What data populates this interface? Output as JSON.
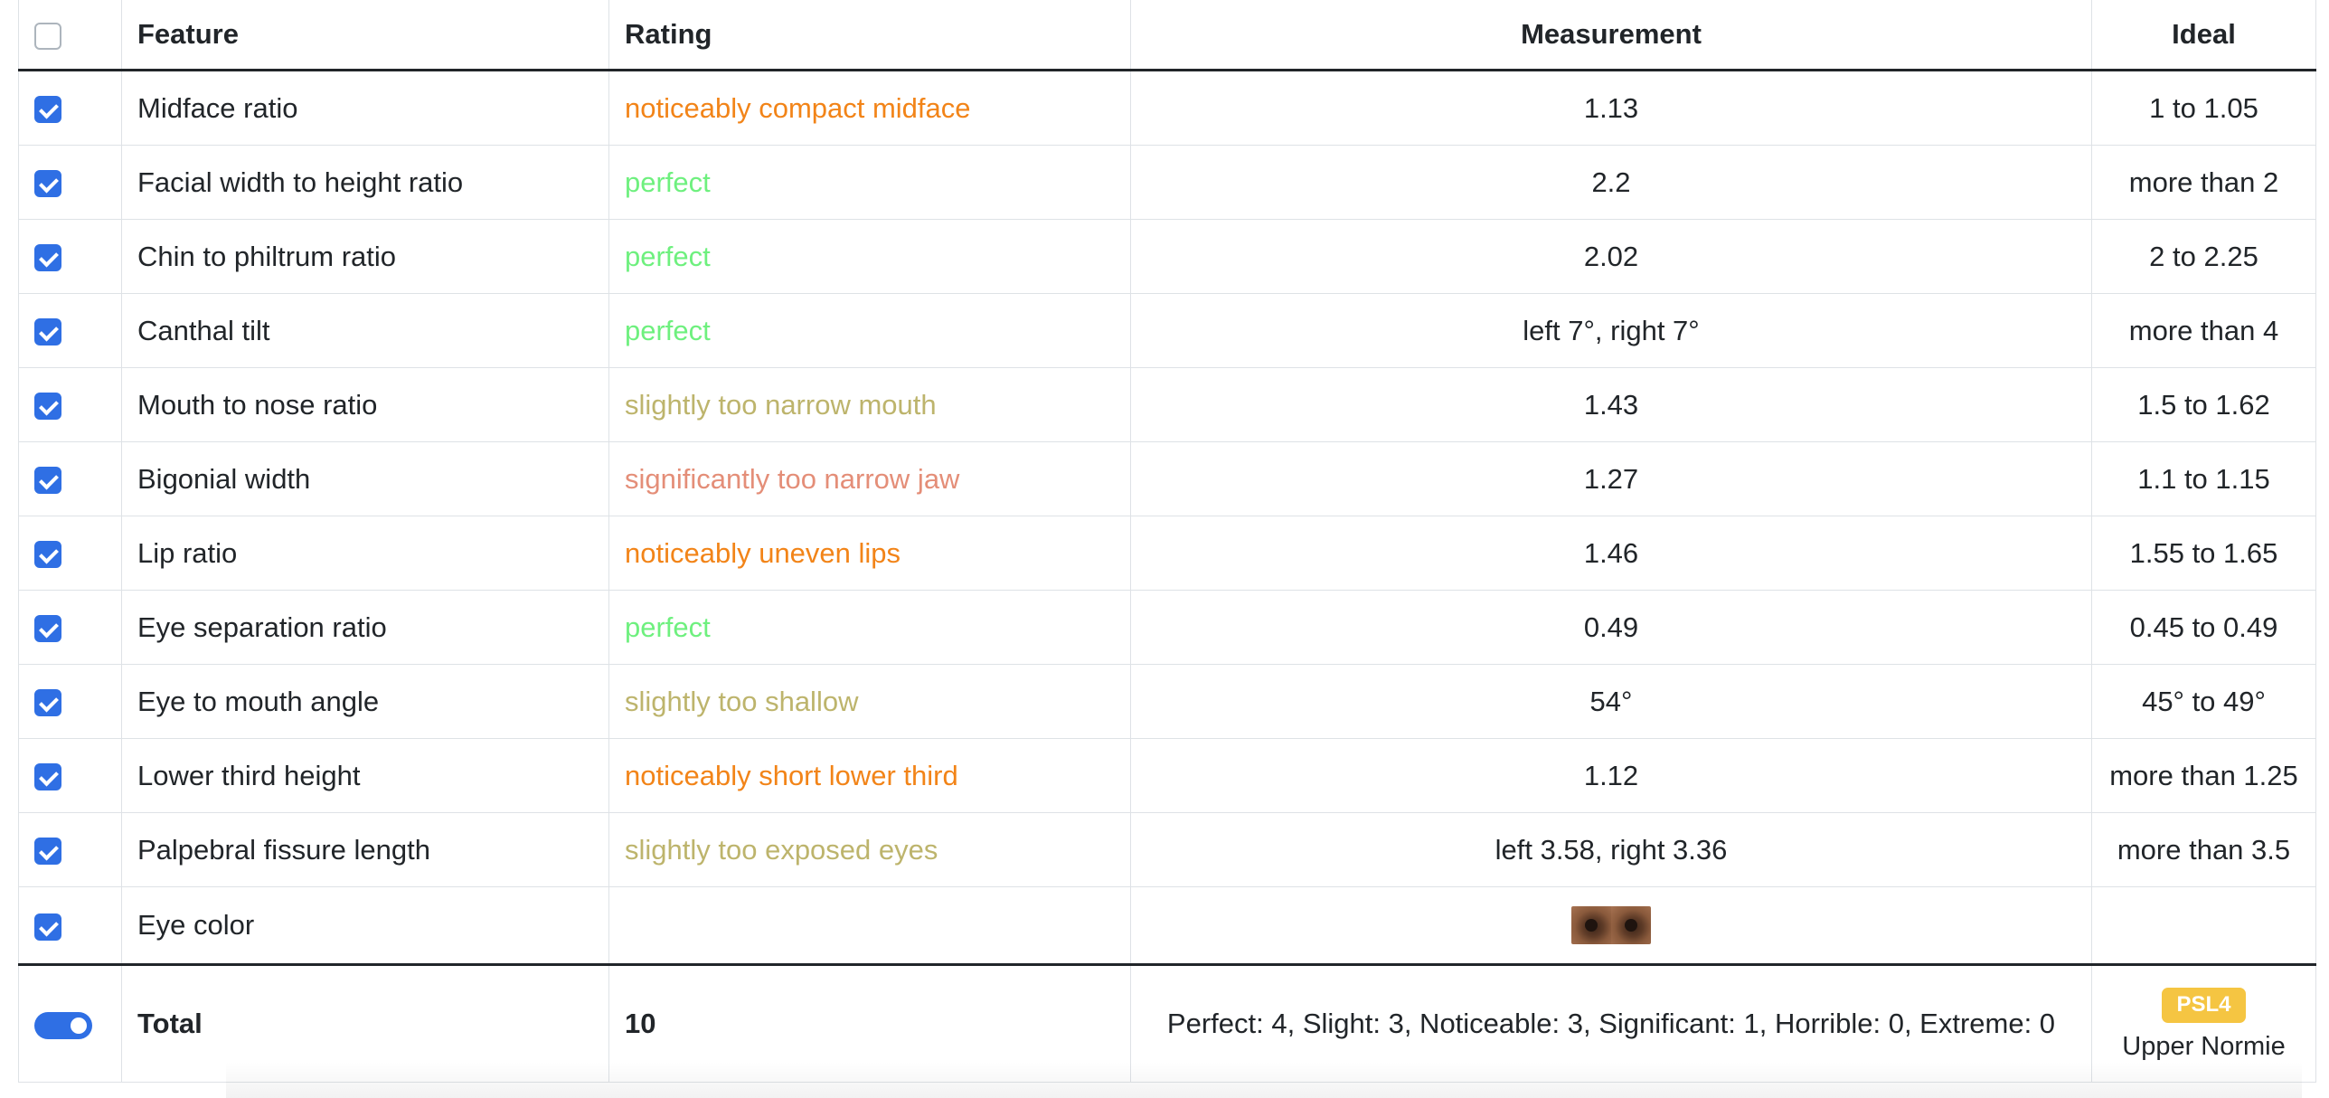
{
  "headers": {
    "feature": "Feature",
    "rating": "Rating",
    "measurement": "Measurement",
    "ideal": "Ideal"
  },
  "rows": [
    {
      "feature": "Midface ratio",
      "rating": "noticeably compact midface",
      "rating_color": "#f28418",
      "measurement": "1.13",
      "ideal": "1 to 1.05"
    },
    {
      "feature": "Facial width to height ratio",
      "rating": "perfect",
      "rating_color": "#6ef07e",
      "measurement": "2.2",
      "ideal": "more than 2"
    },
    {
      "feature": "Chin to philtrum ratio",
      "rating": "perfect",
      "rating_color": "#6ef07e",
      "measurement": "2.02",
      "ideal": "2 to 2.25"
    },
    {
      "feature": "Canthal tilt",
      "rating": "perfect",
      "rating_color": "#6ef07e",
      "measurement": "left 7°, right 7°",
      "ideal": "more than 4"
    },
    {
      "feature": "Mouth to nose ratio",
      "rating": "slightly too narrow mouth",
      "rating_color": "#bdb46c",
      "measurement": "1.43",
      "ideal": "1.5 to 1.62"
    },
    {
      "feature": "Bigonial width",
      "rating": "significantly too narrow jaw",
      "rating_color": "#e48e78",
      "measurement": "1.27",
      "ideal": "1.1 to 1.15"
    },
    {
      "feature": "Lip ratio",
      "rating": "noticeably uneven lips",
      "rating_color": "#f28418",
      "measurement": "1.46",
      "ideal": "1.55 to 1.65"
    },
    {
      "feature": "Eye separation ratio",
      "rating": "perfect",
      "rating_color": "#6ef07e",
      "measurement": "0.49",
      "ideal": "0.45 to 0.49"
    },
    {
      "feature": "Eye to mouth angle",
      "rating": "slightly too shallow",
      "rating_color": "#bdb46c",
      "measurement": "54°",
      "ideal": "45° to 49°"
    },
    {
      "feature": "Lower third height",
      "rating": "noticeably short lower third",
      "rating_color": "#f28418",
      "measurement": "1.12",
      "ideal": "more than 1.25"
    },
    {
      "feature": "Palpebral fissure length",
      "rating": "slightly too exposed eyes",
      "rating_color": "#bdb46c",
      "measurement": "left 3.58, right 3.36",
      "ideal": "more than 3.5"
    },
    {
      "feature": "Eye color",
      "rating": "",
      "rating_color": "#212529",
      "measurement": "",
      "ideal": "",
      "measurement_icon": "eye-color-swatch"
    }
  ],
  "footer": {
    "label": "Total",
    "total_value": "10",
    "summary": "Perfect: 4, Slight: 3, Noticeable: 3, Significant: 1, Horrible: 0, Extreme: 0",
    "badge": "PSL4",
    "badge_color": "#f5c542",
    "tier": "Upper Normie"
  },
  "accent_color": "#2f6fe4"
}
